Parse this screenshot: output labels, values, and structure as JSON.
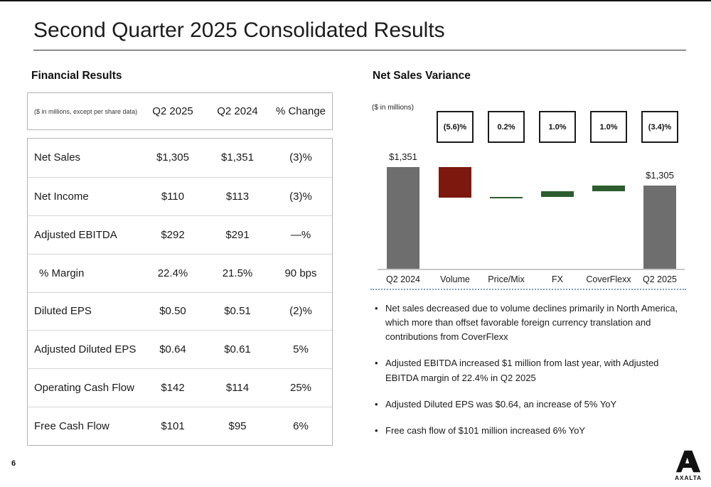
{
  "slide": {
    "title": "Second Quarter 2025 Consolidated Results",
    "page_number": "6"
  },
  "financial_results": {
    "heading": "Financial Results",
    "table": {
      "unit_note": "($ in millions, except per share data)",
      "columns": [
        "Q2 2025",
        "Q2 2024",
        "% Change"
      ],
      "rows": [
        {
          "label": "Net Sales",
          "q2_2025": "$1,305",
          "q2_2024": "$1,351",
          "change": "(3)%"
        },
        {
          "label": "Net Income",
          "q2_2025": "$110",
          "q2_2024": "$113",
          "change": "(3)%"
        },
        {
          "label": "Adjusted EBITDA",
          "q2_2025": "$292",
          "q2_2024": "$291",
          "change": "—%"
        },
        {
          "label": "% Margin",
          "q2_2025": "22.4%",
          "q2_2024": "21.5%",
          "change": "90 bps"
        },
        {
          "label": "Diluted EPS",
          "q2_2025": "$0.50",
          "q2_2024": "$0.51",
          "change": "(2)%"
        },
        {
          "label": "Adjusted Diluted EPS",
          "q2_2025": "$0.64",
          "q2_2024": "$0.61",
          "change": "5%"
        },
        {
          "label": "Operating Cash Flow",
          "q2_2025": "$142",
          "q2_2024": "$114",
          "change": "25%"
        },
        {
          "label": "Free Cash Flow",
          "q2_2025": "$101",
          "q2_2024": "$95",
          "change": "6%"
        }
      ]
    }
  },
  "net_sales_variance": {
    "heading": "Net Sales Variance",
    "unit_note": "($ in millions)",
    "chart_data": {
      "type": "bar",
      "subtype": "waterfall",
      "categories": [
        "Q2 2024",
        "Volume",
        "Price/Mix",
        "FX",
        "CoverFlexx",
        "Q2 2025"
      ],
      "start_value": 1351,
      "end_value": 1305,
      "start_label": "$1,351",
      "end_label": "$1,305",
      "deltas_pct": [
        -5.6,
        0.2,
        1.0,
        1.0
      ],
      "callouts": [
        "(5.6)%",
        "0.2%",
        "1.0%",
        "1.0%",
        "(3.4)%"
      ],
      "colors": {
        "total": "#6e6e6e",
        "decrease": "#7d180e",
        "increase": "#2d5c2e",
        "baseline": "#c9c9c9"
      }
    },
    "bullets": [
      "Net sales decreased due to volume declines primarily in North America, which more than offset favorable foreign currency translation and contributions from CoverFlexx",
      "Adjusted EBITDA increased $1 million from last year, with Adjusted EBITDA margin of 22.4% in Q2 2025",
      "Adjusted Diluted EPS was $0.64, an increase of 5% YoY",
      "Free cash flow of $101 million increased 6% YoY"
    ]
  },
  "footer": {
    "logo_text": "AXALTA"
  }
}
